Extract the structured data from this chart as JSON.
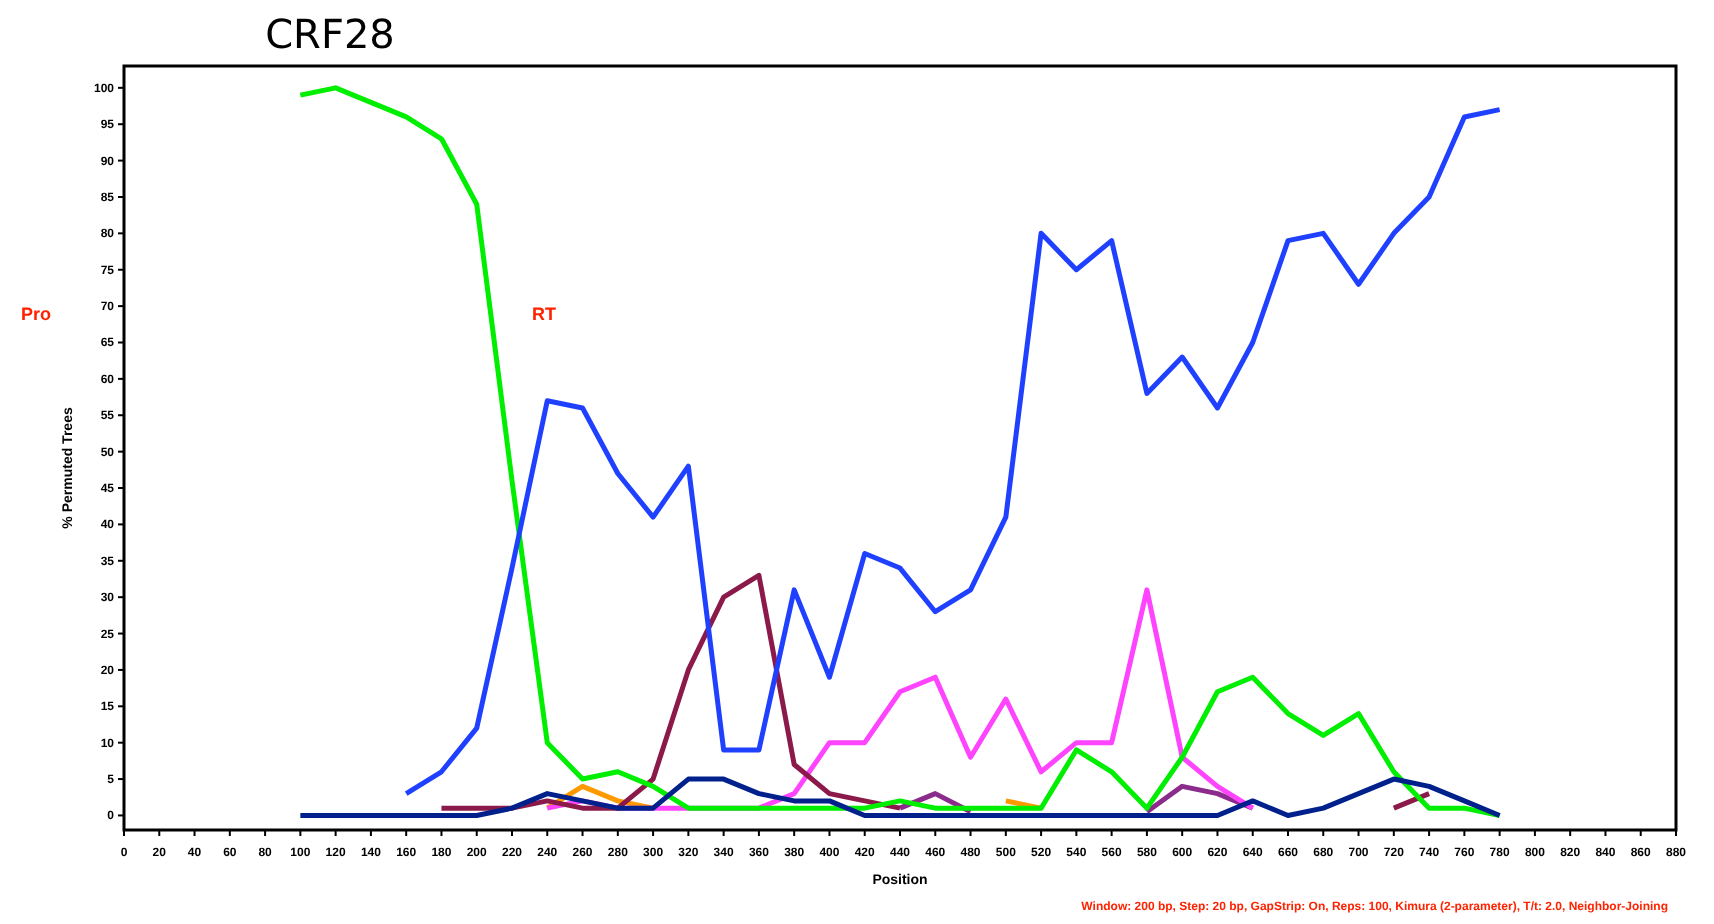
{
  "chart_data": {
    "type": "line",
    "title": "CRF28",
    "xlabel": "Position",
    "ylabel": "% Permuted Trees",
    "annotations": [
      "Pro",
      "RT",
      "Window: 200 bp, Step: 20 bp, GapStrip: On, Reps: 100, Kimura (2-parameter), T/t: 2.0, Neighbor-Joining"
    ],
    "x": [
      100,
      120,
      140,
      160,
      180,
      200,
      220,
      240,
      260,
      280,
      300,
      320,
      340,
      360,
      380,
      400,
      420,
      440,
      460,
      480,
      500,
      520,
      540,
      560,
      580,
      600,
      620,
      640,
      660,
      680,
      700,
      720,
      740,
      760,
      780
    ],
    "xlim": [
      0,
      880
    ],
    "xticks": [
      0,
      20,
      40,
      60,
      80,
      100,
      120,
      140,
      160,
      180,
      200,
      220,
      240,
      260,
      280,
      300,
      320,
      340,
      360,
      380,
      400,
      420,
      440,
      460,
      480,
      500,
      520,
      540,
      560,
      580,
      600,
      620,
      640,
      660,
      680,
      700,
      720,
      740,
      760,
      780,
      800,
      820,
      840,
      860,
      880
    ],
    "ylim": [
      -2,
      103
    ],
    "yticks": [
      0,
      5,
      10,
      15,
      20,
      25,
      30,
      35,
      40,
      45,
      50,
      55,
      60,
      65,
      70,
      75,
      80,
      85,
      90,
      95,
      100
    ],
    "grid": false,
    "marker": "none",
    "line_style": "solid",
    "series": [
      {
        "color": "#ff9900",
        "values": [
          null,
          null,
          null,
          null,
          null,
          null,
          null,
          1,
          4,
          2,
          1,
          null,
          null,
          null,
          null,
          null,
          null,
          null,
          null,
          null,
          2,
          1,
          null,
          null,
          null,
          null,
          null,
          null,
          null,
          null,
          null,
          null,
          null,
          null,
          null
        ]
      },
      {
        "color": "#8b2b8b",
        "values": [
          null,
          null,
          null,
          null,
          null,
          null,
          null,
          null,
          null,
          null,
          null,
          null,
          null,
          null,
          null,
          null,
          null,
          1,
          3,
          0.5,
          null,
          null,
          null,
          null,
          0.5,
          4,
          3,
          1,
          null,
          null,
          null,
          null,
          null,
          null,
          null
        ]
      },
      {
        "color": "#ff44ff",
        "values": [
          null,
          null,
          null,
          null,
          null,
          null,
          null,
          1,
          2,
          1,
          1,
          1,
          1,
          1,
          3,
          10,
          10,
          17,
          19,
          8,
          16,
          6,
          10,
          10,
          31,
          8,
          4,
          1,
          null,
          null,
          null,
          null,
          null,
          null,
          null
        ]
      },
      {
        "color": "#8b1a4a",
        "values": [
          null,
          null,
          null,
          null,
          1,
          1,
          1,
          2,
          1,
          1,
          5,
          20,
          30,
          33,
          7,
          3,
          2,
          1,
          null,
          null,
          null,
          null,
          null,
          null,
          null,
          null,
          null,
          null,
          null,
          null,
          null,
          1,
          3,
          null,
          null
        ]
      },
      {
        "color": "#00ee00",
        "values": [
          99,
          100,
          98,
          96,
          93,
          84,
          46,
          10,
          5,
          6,
          4,
          1,
          1,
          1,
          1,
          1,
          1,
          2,
          1,
          1,
          1,
          1,
          9,
          6,
          1,
          8,
          17,
          19,
          14,
          11,
          14,
          6,
          1,
          1,
          0
        ]
      },
      {
        "color": "#2040ff",
        "values": [
          null,
          null,
          null,
          3,
          6,
          12,
          34,
          57,
          56,
          47,
          41,
          48,
          9,
          9,
          31,
          19,
          36,
          34,
          28,
          31,
          41,
          80,
          75,
          79,
          58,
          63,
          56,
          65,
          79,
          80,
          73,
          80,
          85,
          96,
          97
        ]
      },
      {
        "color": "#00208b",
        "values": [
          0,
          0,
          0,
          0,
          0,
          0,
          1,
          3,
          2,
          1,
          1,
          5,
          5,
          3,
          2,
          2,
          0,
          0,
          0,
          0,
          0,
          0,
          0,
          0,
          0,
          0,
          0,
          2,
          0,
          1,
          3,
          5,
          4,
          2,
          0
        ]
      }
    ]
  }
}
